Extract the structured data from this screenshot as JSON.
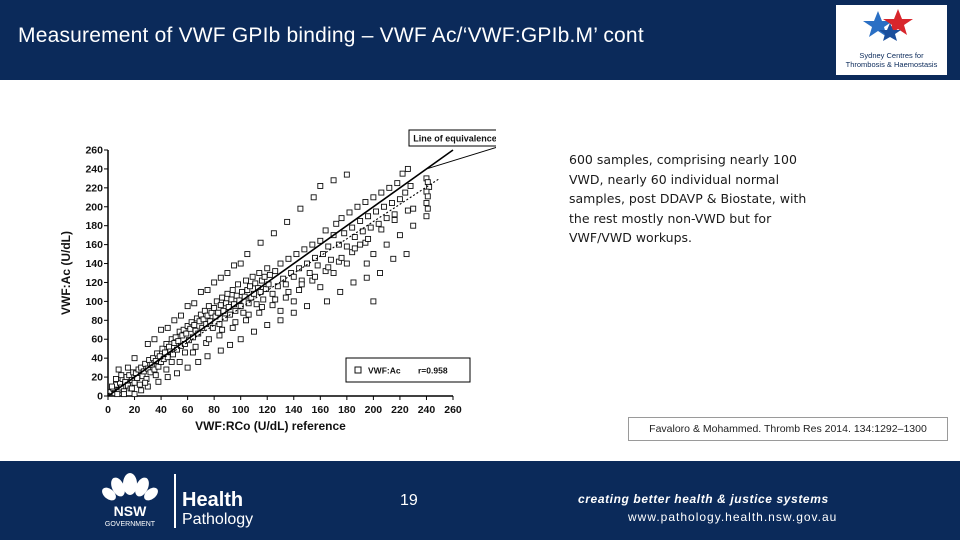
{
  "header": {
    "title": "Measurement of VWF GPIb binding – VWF Ac/‘VWF:GPIb.M’ cont"
  },
  "logo": {
    "line1": "Sydney Centres for",
    "line2": "Thrombosis & Haemostasis"
  },
  "description": "600 samples, comprising nearly 100 VWD, nearly 60 individual normal samples, post DDAVP & Biostate, with the rest mostly non-VWD but for VWF/VWD workups.",
  "citation": "Favaloro & Mohammed. Thromb Res 2014. 134:1292–1300",
  "chart_data": {
    "type": "scatter",
    "xlabel": "VWF:RCo (U/dL) reference",
    "ylabel": "VWF:Ac (U/dL)",
    "xlim": [
      0,
      260
    ],
    "ylim": [
      0,
      260
    ],
    "xticks": [
      0,
      20,
      40,
      60,
      80,
      100,
      120,
      140,
      160,
      180,
      200,
      220,
      240,
      260
    ],
    "yticks": [
      0,
      20,
      40,
      60,
      80,
      100,
      120,
      140,
      160,
      180,
      200,
      220,
      240,
      260
    ],
    "annotation": "Line of equivalence",
    "legend": {
      "series": "VWF:Ac",
      "stat": "r=0.958",
      "position": "bottom-right"
    },
    "series": [
      {
        "name": "VWF:Ac",
        "marker": "open-square",
        "points": [
          [
            2,
            4
          ],
          [
            4,
            8
          ],
          [
            5,
            3
          ],
          [
            6,
            12
          ],
          [
            8,
            6
          ],
          [
            9,
            14
          ],
          [
            10,
            9
          ],
          [
            11,
            18
          ],
          [
            12,
            5
          ],
          [
            13,
            15
          ],
          [
            14,
            20
          ],
          [
            15,
            11
          ],
          [
            16,
            22
          ],
          [
            17,
            8
          ],
          [
            18,
            17
          ],
          [
            19,
            25
          ],
          [
            20,
            14
          ],
          [
            21,
            24
          ],
          [
            22,
            19
          ],
          [
            23,
            28
          ],
          [
            24,
            12
          ],
          [
            25,
            30
          ],
          [
            26,
            21
          ],
          [
            27,
            26
          ],
          [
            28,
            34
          ],
          [
            29,
            18
          ],
          [
            30,
            29
          ],
          [
            31,
            38
          ],
          [
            32,
            25
          ],
          [
            33,
            33
          ],
          [
            34,
            40
          ],
          [
            35,
            28
          ],
          [
            36,
            37
          ],
          [
            37,
            45
          ],
          [
            38,
            31
          ],
          [
            39,
            42
          ],
          [
            40,
            36
          ],
          [
            41,
            50
          ],
          [
            42,
            39
          ],
          [
            43,
            46
          ],
          [
            44,
            55
          ],
          [
            45,
            41
          ],
          [
            46,
            52
          ],
          [
            47,
            47
          ],
          [
            48,
            60
          ],
          [
            49,
            44
          ],
          [
            50,
            56
          ],
          [
            51,
            62
          ],
          [
            52,
            49
          ],
          [
            53,
            58
          ],
          [
            54,
            68
          ],
          [
            55,
            53
          ],
          [
            56,
            64
          ],
          [
            57,
            70
          ],
          [
            58,
            55
          ],
          [
            59,
            66
          ],
          [
            60,
            74
          ],
          [
            61,
            59
          ],
          [
            62,
            71
          ],
          [
            63,
            78
          ],
          [
            64,
            62
          ],
          [
            65,
            75
          ],
          [
            66,
            69
          ],
          [
            67,
            82
          ],
          [
            68,
            66
          ],
          [
            69,
            79
          ],
          [
            70,
            86
          ],
          [
            71,
            72
          ],
          [
            72,
            81
          ],
          [
            73,
            90
          ],
          [
            74,
            76
          ],
          [
            75,
            85
          ],
          [
            76,
            95
          ],
          [
            77,
            79
          ],
          [
            78,
            88
          ],
          [
            79,
            72
          ],
          [
            80,
            93
          ],
          [
            81,
            84
          ],
          [
            82,
            100
          ],
          [
            83,
            88
          ],
          [
            84,
            76
          ],
          [
            85,
            96
          ],
          [
            86,
            104
          ],
          [
            87,
            90
          ],
          [
            88,
            82
          ],
          [
            89,
            98
          ],
          [
            90,
            108
          ],
          [
            91,
            94
          ],
          [
            92,
            86
          ],
          [
            93,
            102
          ],
          [
            94,
            112
          ],
          [
            95,
            97
          ],
          [
            96,
            90
          ],
          [
            97,
            106
          ],
          [
            98,
            118
          ],
          [
            99,
            101
          ],
          [
            100,
            95
          ],
          [
            101,
            110
          ],
          [
            102,
            88
          ],
          [
            103,
            105
          ],
          [
            104,
            122
          ],
          [
            105,
            112
          ],
          [
            106,
            98
          ],
          [
            107,
            116
          ],
          [
            108,
            104
          ],
          [
            109,
            126
          ],
          [
            110,
            108
          ],
          [
            111,
            119
          ],
          [
            112,
            97
          ],
          [
            113,
            114
          ],
          [
            114,
            130
          ],
          [
            115,
            110
          ],
          [
            116,
            122
          ],
          [
            117,
            102
          ],
          [
            118,
            126
          ],
          [
            119,
            113
          ],
          [
            120,
            135
          ],
          [
            121,
            118
          ],
          [
            122,
            128
          ],
          [
            124,
            108
          ],
          [
            126,
            132
          ],
          [
            128,
            116
          ],
          [
            130,
            140
          ],
          [
            132,
            124
          ],
          [
            134,
            118
          ],
          [
            136,
            145
          ],
          [
            138,
            130
          ],
          [
            140,
            126
          ],
          [
            142,
            150
          ],
          [
            144,
            135
          ],
          [
            146,
            122
          ],
          [
            148,
            155
          ],
          [
            150,
            140
          ],
          [
            152,
            130
          ],
          [
            154,
            160
          ],
          [
            156,
            146
          ],
          [
            158,
            138
          ],
          [
            160,
            164
          ],
          [
            162,
            150
          ],
          [
            164,
            175
          ],
          [
            166,
            158
          ],
          [
            168,
            144
          ],
          [
            170,
            170
          ],
          [
            172,
            182
          ],
          [
            174,
            160
          ],
          [
            176,
            188
          ],
          [
            178,
            172
          ],
          [
            180,
            158
          ],
          [
            182,
            194
          ],
          [
            184,
            178
          ],
          [
            186,
            168
          ],
          [
            188,
            200
          ],
          [
            190,
            185
          ],
          [
            192,
            174
          ],
          [
            194,
            205
          ],
          [
            196,
            190
          ],
          [
            198,
            178
          ],
          [
            200,
            210
          ],
          [
            202,
            195
          ],
          [
            204,
            182
          ],
          [
            206,
            215
          ],
          [
            208,
            200
          ],
          [
            210,
            188
          ],
          [
            212,
            220
          ],
          [
            214,
            204
          ],
          [
            216,
            192
          ],
          [
            218,
            225
          ],
          [
            220,
            208
          ],
          [
            222,
            235
          ],
          [
            224,
            215
          ],
          [
            226,
            240
          ],
          [
            228,
            222
          ],
          [
            230,
            198
          ],
          [
            240,
            230
          ],
          [
            241,
            226
          ],
          [
            242,
            221
          ],
          [
            240,
            216
          ],
          [
            241,
            211
          ],
          [
            240,
            204
          ],
          [
            241,
            198
          ],
          [
            240,
            190
          ],
          [
            200,
            100
          ],
          [
            190,
            160
          ],
          [
            195,
            140
          ],
          [
            185,
            120
          ],
          [
            175,
            110
          ],
          [
            165,
            100
          ],
          [
            150,
            95
          ],
          [
            140,
            88
          ],
          [
            130,
            80
          ],
          [
            120,
            75
          ],
          [
            110,
            68
          ],
          [
            100,
            60
          ],
          [
            92,
            54
          ],
          [
            85,
            48
          ],
          [
            75,
            42
          ],
          [
            68,
            36
          ],
          [
            60,
            30
          ],
          [
            52,
            24
          ],
          [
            45,
            20
          ],
          [
            38,
            15
          ],
          [
            30,
            10
          ],
          [
            25,
            6
          ],
          [
            20,
            2
          ],
          [
            35,
            60
          ],
          [
            45,
            72
          ],
          [
            55,
            85
          ],
          [
            65,
            98
          ],
          [
            75,
            112
          ],
          [
            85,
            125
          ],
          [
            95,
            138
          ],
          [
            105,
            150
          ],
          [
            115,
            162
          ],
          [
            125,
            172
          ],
          [
            135,
            184
          ],
          [
            145,
            198
          ],
          [
            155,
            210
          ],
          [
            160,
            222
          ],
          [
            170,
            228
          ],
          [
            180,
            234
          ],
          [
            130,
            90
          ],
          [
            140,
            100
          ],
          [
            160,
            115
          ],
          [
            170,
            130
          ],
          [
            180,
            140
          ],
          [
            200,
            150
          ],
          [
            210,
            160
          ],
          [
            220,
            170
          ],
          [
            230,
            180
          ],
          [
            225,
            150
          ],
          [
            215,
            145
          ],
          [
            205,
            130
          ],
          [
            195,
            125
          ],
          [
            100,
            140
          ],
          [
            90,
            130
          ],
          [
            80,
            120
          ],
          [
            70,
            110
          ],
          [
            60,
            95
          ],
          [
            50,
            80
          ],
          [
            40,
            70
          ],
          [
            30,
            55
          ],
          [
            20,
            40
          ],
          [
            15,
            30
          ],
          [
            10,
            22
          ],
          [
            8,
            28
          ],
          [
            6,
            18
          ],
          [
            3,
            10
          ],
          [
            7,
            2
          ],
          [
            12,
            2
          ],
          [
            18,
            8
          ],
          [
            28,
            14
          ],
          [
            36,
            22
          ],
          [
            44,
            28
          ],
          [
            54,
            36
          ],
          [
            64,
            46
          ],
          [
            74,
            56
          ],
          [
            84,
            64
          ],
          [
            94,
            72
          ],
          [
            104,
            80
          ],
          [
            114,
            88
          ],
          [
            124,
            96
          ],
          [
            134,
            104
          ],
          [
            144,
            112
          ],
          [
            154,
            122
          ],
          [
            164,
            132
          ],
          [
            174,
            142
          ],
          [
            184,
            152
          ],
          [
            194,
            162
          ],
          [
            48,
            36
          ],
          [
            58,
            46
          ],
          [
            66,
            52
          ],
          [
            76,
            60
          ],
          [
            86,
            70
          ],
          [
            96,
            78
          ],
          [
            106,
            86
          ],
          [
            116,
            94
          ],
          [
            126,
            102
          ],
          [
            136,
            110
          ],
          [
            146,
            118
          ],
          [
            156,
            126
          ],
          [
            166,
            136
          ],
          [
            176,
            146
          ],
          [
            186,
            156
          ],
          [
            196,
            166
          ],
          [
            206,
            176
          ],
          [
            216,
            186
          ],
          [
            226,
            196
          ]
        ]
      }
    ],
    "lines": [
      {
        "name": "Line of equivalence",
        "style": "solid",
        "from": [
          0,
          0
        ],
        "to": [
          260,
          260
        ]
      },
      {
        "name": "regression",
        "style": "dotted",
        "from": [
          0,
          2
        ],
        "to": [
          250,
          230
        ]
      }
    ]
  },
  "footer": {
    "brand_health": "Health",
    "brand_pathology": "Pathology",
    "nsw_line1": "NSW",
    "nsw_line2": "GOVERNMENT",
    "page_number": "19",
    "tagline": "creating better health & justice systems",
    "url": "www.pathology.health.nsw.gov.au"
  }
}
